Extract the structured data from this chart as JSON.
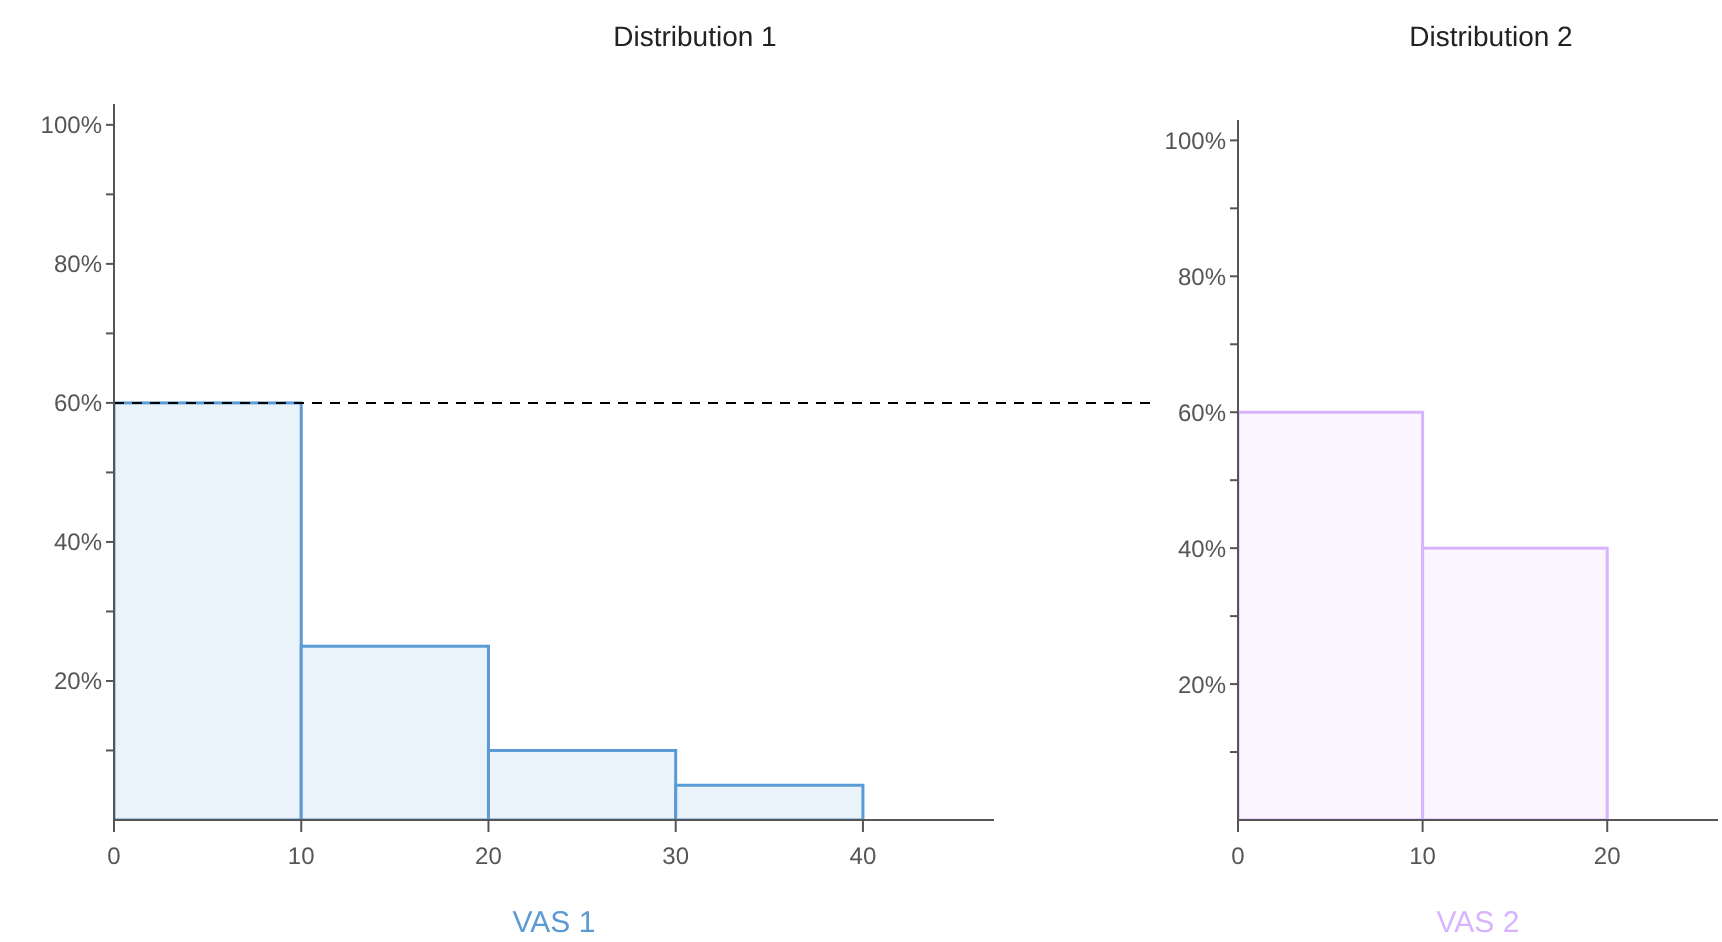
{
  "chart_data": [
    {
      "type": "histogram",
      "title": "Distribution 1",
      "xlabel": "VAS 1",
      "bins": [
        0,
        10,
        20,
        30,
        40
      ],
      "values": [
        60,
        25,
        10,
        5
      ],
      "color": "#5b9bd5",
      "xlim": [
        0,
        47
      ],
      "ylim": [
        0,
        103
      ],
      "xticks": [
        0,
        10,
        20,
        30,
        40
      ],
      "yticks": [
        {
          "value": 10,
          "label": null
        },
        {
          "value": 20,
          "label": "20%"
        },
        {
          "value": 30,
          "label": null
        },
        {
          "value": 40,
          "label": "40%"
        },
        {
          "value": 50,
          "label": null
        },
        {
          "value": 60,
          "label": "60%"
        },
        {
          "value": 70,
          "label": null
        },
        {
          "value": 80,
          "label": "80%"
        },
        {
          "value": 90,
          "label": null
        },
        {
          "value": 100,
          "label": "100%"
        }
      ],
      "ref_lines": [
        {
          "axis": "y",
          "value": 60,
          "line_style": "dashed",
          "color": "#000000"
        }
      ],
      "grid": false,
      "legend": false
    },
    {
      "type": "histogram",
      "title": "Distribution 2",
      "xlabel": "VAS 2",
      "bins": [
        0,
        10,
        20
      ],
      "values": [
        60,
        40
      ],
      "color": "#d8b4fe",
      "xlim": [
        0,
        26
      ],
      "ylim": [
        0,
        103
      ],
      "xticks": [
        0,
        10,
        20
      ],
      "yticks": [
        {
          "value": 10,
          "label": null
        },
        {
          "value": 20,
          "label": "20%"
        },
        {
          "value": 30,
          "label": null
        },
        {
          "value": 40,
          "label": "40%"
        },
        {
          "value": 50,
          "label": null
        },
        {
          "value": 60,
          "label": "60%"
        },
        {
          "value": 70,
          "label": null
        },
        {
          "value": 80,
          "label": "80%"
        },
        {
          "value": 90,
          "label": null
        },
        {
          "value": 100,
          "label": "100%"
        }
      ],
      "grid": false,
      "legend": false
    }
  ]
}
